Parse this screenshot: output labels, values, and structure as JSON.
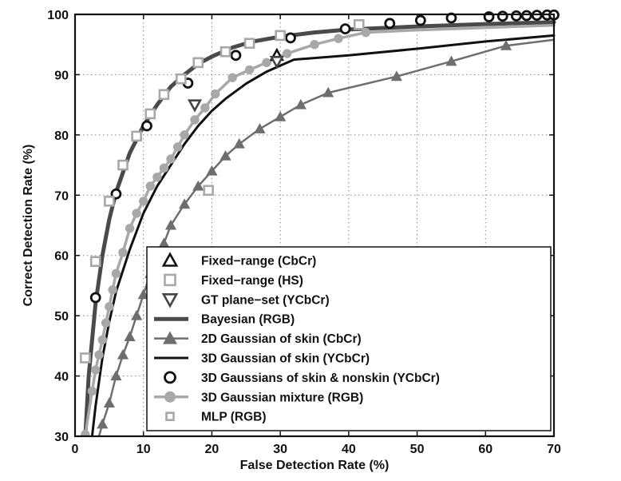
{
  "chart_data": {
    "type": "line",
    "title": "",
    "xlabel": "False  Detection  Rate (%)",
    "ylabel": "Correct  Detection  Rate (%)",
    "xlim": [
      0,
      70
    ],
    "ylim": [
      30,
      100
    ],
    "xticks": [
      0,
      10,
      20,
      30,
      40,
      50,
      60,
      70
    ],
    "yticks": [
      30,
      40,
      50,
      60,
      70,
      80,
      90,
      100
    ],
    "grid": true,
    "grid_style": "dotted",
    "legend_position": "lower-right",
    "series": [
      {
        "name": "Fixed−range (CbCr)",
        "style": "marker",
        "marker": "triangle-up-open",
        "color": "#111111",
        "points": [
          [
            29.5,
            93.2
          ]
        ]
      },
      {
        "name": "Fixed−range (HS)",
        "style": "marker",
        "marker": "square-open",
        "color": "#a8a8a8",
        "points": [
          [
            19.5,
            70.8
          ],
          [
            41.5,
            98.3
          ]
        ]
      },
      {
        "name": "GT plane−set (YCbCr)",
        "style": "marker",
        "marker": "triangle-down-open",
        "color": "#444444",
        "points": [
          [
            17.5,
            85.0
          ],
          [
            29.5,
            92.2
          ]
        ]
      },
      {
        "name": "Bayesian (RGB)",
        "style": "line",
        "color": "#4a4a4a",
        "linewidth": 5,
        "points": [
          [
            1.5,
            30
          ],
          [
            2,
            40
          ],
          [
            3,
            52
          ],
          [
            4,
            60
          ],
          [
            5,
            66
          ],
          [
            6,
            70.5
          ],
          [
            8,
            77
          ],
          [
            10,
            81.5
          ],
          [
            12,
            85
          ],
          [
            14,
            88
          ],
          [
            16,
            90
          ],
          [
            18,
            91.8
          ],
          [
            20,
            93
          ],
          [
            23,
            94.5
          ],
          [
            26,
            95.5
          ],
          [
            30,
            96.3
          ],
          [
            35,
            97
          ],
          [
            40,
            97.5
          ],
          [
            50,
            98
          ],
          [
            60,
            98.4
          ],
          [
            70,
            98.7
          ]
        ]
      },
      {
        "name": "2D Gaussian of skin (CbCr)",
        "style": "line+marker",
        "marker": "triangle-up-filled",
        "color": "#6e6e6e",
        "linewidth": 2.5,
        "points": [
          [
            3.5,
            30
          ],
          [
            4,
            32
          ],
          [
            5,
            35.5
          ],
          [
            6,
            40
          ],
          [
            7,
            43.5
          ],
          [
            8,
            46.5
          ],
          [
            9,
            50
          ],
          [
            10,
            53.5
          ],
          [
            11,
            57
          ],
          [
            12,
            59
          ],
          [
            13,
            62
          ],
          [
            14,
            65
          ],
          [
            16,
            68.5
          ],
          [
            18,
            71.5
          ],
          [
            20,
            74
          ],
          [
            22,
            76.5
          ],
          [
            24,
            78.5
          ],
          [
            27,
            81
          ],
          [
            30,
            83
          ],
          [
            33,
            85
          ],
          [
            37,
            87
          ],
          [
            47,
            89.7
          ],
          [
            55,
            92.2
          ],
          [
            63,
            94.8
          ],
          [
            70,
            95.8
          ]
        ]
      },
      {
        "name": "3D Gaussian of skin (YCbCr)",
        "style": "line",
        "color": "#111111",
        "linewidth": 3,
        "points": [
          [
            2.5,
            30
          ],
          [
            3,
            35
          ],
          [
            4,
            43
          ],
          [
            5,
            49
          ],
          [
            6,
            54
          ],
          [
            8,
            61
          ],
          [
            10,
            67
          ],
          [
            12,
            71.5
          ],
          [
            14,
            75
          ],
          [
            16,
            78.5
          ],
          [
            18,
            81.5
          ],
          [
            20,
            84
          ],
          [
            22,
            86
          ],
          [
            25,
            88.5
          ],
          [
            28,
            90.5
          ],
          [
            30,
            91.5
          ],
          [
            32,
            92.5
          ],
          [
            40,
            93.2
          ],
          [
            50,
            94.3
          ],
          [
            60,
            95.5
          ],
          [
            70,
            96.5
          ]
        ]
      },
      {
        "name": "3D Gaussians of skin & nonskin (YCbCr)",
        "style": "marker",
        "marker": "circle-open",
        "color": "#111111",
        "points": [
          [
            3,
            53
          ],
          [
            6,
            70.2
          ],
          [
            10.5,
            81.5
          ],
          [
            16.5,
            88.6
          ],
          [
            23.5,
            93.2
          ],
          [
            31.5,
            96.1
          ],
          [
            39.5,
            97.6
          ],
          [
            46,
            98.5
          ],
          [
            50.5,
            99
          ],
          [
            55,
            99.4
          ],
          [
            60.5,
            99.6
          ],
          [
            62.5,
            99.7
          ],
          [
            64.5,
            99.75
          ],
          [
            66,
            99.8
          ],
          [
            67.5,
            99.85
          ],
          [
            69,
            99.9
          ],
          [
            70,
            99.9
          ]
        ]
      },
      {
        "name": "3D Gaussian mixture (RGB)",
        "style": "line+marker",
        "marker": "circle-filled",
        "color": "#a8a8a8",
        "linewidth": 3.5,
        "points": [
          [
            1.5,
            30.3
          ],
          [
            2.5,
            37.5
          ],
          [
            3,
            41
          ],
          [
            3.5,
            43.5
          ],
          [
            4,
            46
          ],
          [
            4.5,
            48.8
          ],
          [
            5,
            51.5
          ],
          [
            5.5,
            54.3
          ],
          [
            6,
            57
          ],
          [
            7,
            60.5
          ],
          [
            8,
            64.5
          ],
          [
            9,
            67
          ],
          [
            10,
            69
          ],
          [
            11,
            71.5
          ],
          [
            12,
            73
          ],
          [
            13,
            74.5
          ],
          [
            14,
            76
          ],
          [
            15,
            78
          ],
          [
            16,
            80
          ],
          [
            17.5,
            82.5
          ],
          [
            19,
            84.5
          ],
          [
            20.5,
            86.8
          ],
          [
            23,
            89.5
          ],
          [
            25.5,
            90.8
          ],
          [
            28,
            92
          ],
          [
            31,
            93.5
          ],
          [
            35,
            95
          ],
          [
            38.5,
            96
          ],
          [
            42.5,
            97
          ],
          [
            50,
            97.4
          ],
          [
            60,
            97.8
          ],
          [
            70,
            98.2
          ]
        ]
      },
      {
        "name": "MLP (RGB)",
        "style": "marker",
        "marker": "square-open",
        "color": "#a8a8a8",
        "points": [
          [
            1.5,
            43
          ],
          [
            3,
            59
          ],
          [
            5,
            69
          ],
          [
            7,
            75
          ],
          [
            9,
            79.8
          ],
          [
            11,
            83.5
          ],
          [
            13,
            86.7
          ],
          [
            15.5,
            89.3
          ],
          [
            18,
            92
          ],
          [
            22,
            93.8
          ],
          [
            25.5,
            95.2
          ],
          [
            30,
            96.5
          ]
        ]
      }
    ]
  }
}
